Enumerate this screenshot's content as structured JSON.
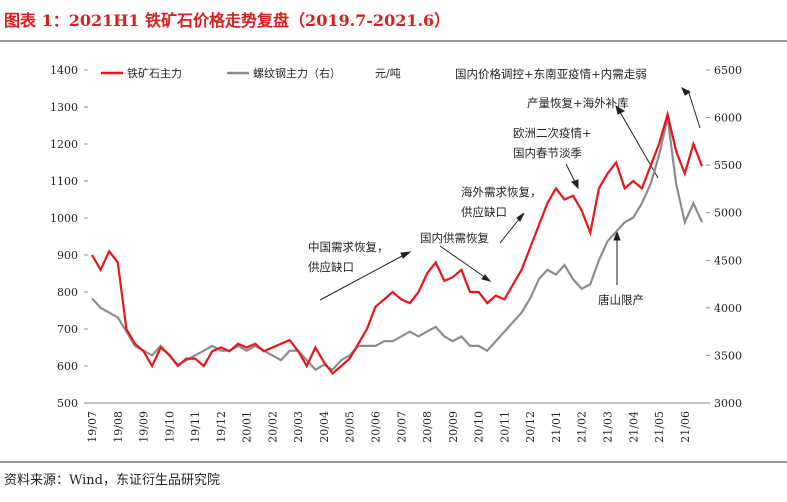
{
  "chart_data": {
    "type": "line",
    "title": "图表 1：2021H1 铁矿石价格走势复盘（2019.7-2021.6）",
    "source": "资料来源：Wind，东证衍生品研究院",
    "unit": "元/吨",
    "categories": [
      "19/07",
      null,
      null,
      "19/08",
      null,
      null,
      "19/09",
      null,
      null,
      "19/10",
      null,
      null,
      "19/11",
      null,
      null,
      "19/12",
      null,
      null,
      "20/01",
      null,
      null,
      "20/02",
      null,
      null,
      "20/03",
      null,
      null,
      "20/04",
      null,
      null,
      "20/05",
      null,
      null,
      "20/06",
      null,
      null,
      "20/07",
      null,
      null,
      "20/08",
      null,
      null,
      "20/09",
      null,
      null,
      "20/10",
      null,
      null,
      "20/11",
      null,
      null,
      "20/12",
      null,
      null,
      "21/01",
      null,
      null,
      "21/02",
      null,
      null,
      "21/03",
      null,
      null,
      "21/04",
      null,
      null,
      "21/05",
      null,
      null,
      "21/06",
      null,
      null
    ],
    "series": [
      {
        "name": "铁矿石主力",
        "color": "#e8151b",
        "values": [
          900,
          860,
          910,
          880,
          700,
          660,
          640,
          600,
          650,
          630,
          600,
          620,
          620,
          600,
          640,
          650,
          640,
          660,
          650,
          660,
          640,
          650,
          660,
          670,
          640,
          600,
          650,
          610,
          580,
          600,
          620,
          660,
          700,
          760,
          780,
          800,
          780,
          770,
          800,
          850,
          880,
          830,
          840,
          860,
          800,
          800,
          770,
          790,
          780,
          820,
          860,
          920,
          980,
          1040,
          1080,
          1050,
          1060,
          1020,
          960,
          1080,
          1120,
          1150,
          1080,
          1100,
          1080,
          1140,
          1200,
          1280,
          1180,
          1120,
          1200,
          1140
        ]
      },
      {
        "name": "螺纹钢主力（右）",
        "color": "#8c8c8c",
        "axis": "y2",
        "values": [
          4100,
          4000,
          3950,
          3900,
          3750,
          3600,
          3550,
          3500,
          3600,
          3500,
          3400,
          3450,
          3500,
          3550,
          3600,
          3550,
          3550,
          3600,
          3550,
          3600,
          3550,
          3500,
          3450,
          3550,
          3550,
          3450,
          3350,
          3400,
          3350,
          3450,
          3500,
          3600,
          3600,
          3600,
          3650,
          3650,
          3700,
          3750,
          3700,
          3750,
          3800,
          3700,
          3650,
          3700,
          3600,
          3600,
          3550,
          3650,
          3750,
          3850,
          3950,
          4100,
          4300,
          4400,
          4350,
          4450,
          4300,
          4200,
          4250,
          4500,
          4700,
          4800,
          4900,
          4950,
          5100,
          5300,
          5600,
          6000,
          5300,
          4900,
          5100,
          4900
        ]
      }
    ],
    "ylim": [
      500,
      1400
    ],
    "yticks": [
      500,
      600,
      700,
      800,
      900,
      1000,
      1100,
      1200,
      1300,
      1400
    ],
    "y2lim": [
      3000,
      6500
    ],
    "y2ticks": [
      3000,
      3500,
      4000,
      4500,
      5000,
      5500,
      6000,
      6500
    ],
    "annotations": [
      "国内价格调控+东南亚疫情+内需走弱",
      "产量恢复+海外补库",
      "欧洲二次疫情+",
      "国内春节淡季",
      "海外需求恢复，",
      "供应缺口",
      "国内供需恢复",
      "中国需求恢复，",
      "供应缺口",
      "唐山限产"
    ]
  }
}
